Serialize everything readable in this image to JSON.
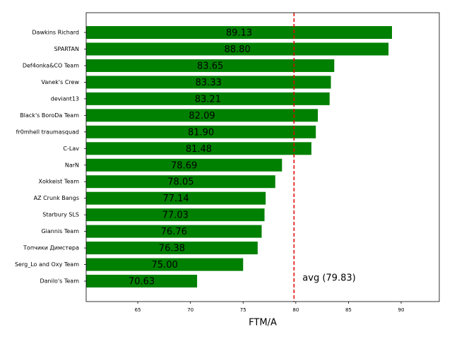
{
  "chart_data": {
    "type": "barh",
    "categories": [
      "Dawkins Richard",
      "SPARTAN",
      "Def4onka&CO Team",
      "Vanek's Crew",
      "deviant13",
      "Black's BoroDa Team",
      "fr0mhell traumasquad",
      "C-Lav",
      "NarN",
      "Xokkeist Team",
      "AZ Crunk Bangs",
      "Starbury SLS",
      "Giannis Team",
      "Топчики Димстера",
      "Serg_Lo and Oxy Team",
      "Danilo's Team"
    ],
    "values": [
      89.13,
      88.8,
      83.65,
      83.33,
      83.21,
      82.09,
      81.9,
      81.48,
      78.69,
      78.05,
      77.14,
      77.03,
      76.76,
      76.38,
      75.0,
      70.63
    ],
    "value_labels": [
      "89.13",
      "88.80",
      "83.65",
      "83.33",
      "83.21",
      "82.09",
      "81.90",
      "81.48",
      "78.69",
      "78.05",
      "77.14",
      "77.03",
      "76.76",
      "76.38",
      "75.00",
      "70.63"
    ],
    "color": "#008000",
    "xlabel": "FTM/A",
    "xlim": [
      60.1,
      93.62
    ],
    "xticks": [
      65,
      70,
      75,
      80,
      85,
      90
    ],
    "average": 79.83,
    "average_label": "avg (79.83)",
    "average_color": "#e00000"
  }
}
